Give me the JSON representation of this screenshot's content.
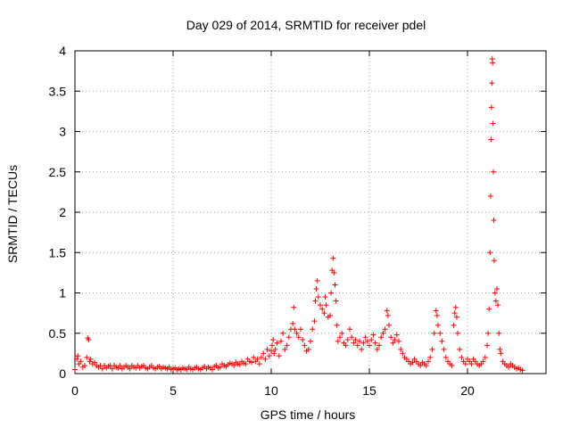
{
  "chart_data": {
    "type": "scatter",
    "title": "Day 029 of 2014, SRMTID for receiver pdel",
    "xlabel": "GPS time / hours",
    "ylabel": "SRMTID / TECUs",
    "xlim": [
      0,
      24
    ],
    "ylim": [
      0,
      4
    ],
    "grid": true,
    "marker": "+",
    "color": "#ff0000",
    "x_ticks": [
      0,
      5,
      10,
      15,
      20
    ],
    "x_tick_labels": [
      "0",
      "5",
      "10",
      "15",
      "20"
    ],
    "y_ticks": [
      0,
      0.5,
      1,
      1.5,
      2,
      2.5,
      3,
      3.5,
      4
    ],
    "y_tick_labels": [
      "0",
      "0.5",
      "1",
      "1.5",
      "2",
      "2.5",
      "3",
      "3.5",
      "4"
    ],
    "series": [
      {
        "name": "SRMTID",
        "points": [
          [
            0.0,
            0.05
          ],
          [
            0.1,
            0.18
          ],
          [
            0.15,
            0.22
          ],
          [
            0.2,
            0.12
          ],
          [
            0.3,
            0.15
          ],
          [
            0.4,
            0.08
          ],
          [
            0.5,
            0.1
          ],
          [
            0.6,
            0.2
          ],
          [
            0.65,
            0.44
          ],
          [
            0.7,
            0.42
          ],
          [
            0.75,
            0.15
          ],
          [
            0.8,
            0.18
          ],
          [
            0.9,
            0.12
          ],
          [
            1.0,
            0.14
          ],
          [
            1.1,
            0.1
          ],
          [
            1.2,
            0.08
          ],
          [
            1.3,
            0.1
          ],
          [
            1.4,
            0.06
          ],
          [
            1.5,
            0.1
          ],
          [
            1.6,
            0.07
          ],
          [
            1.7,
            0.09
          ],
          [
            1.8,
            0.1
          ],
          [
            1.9,
            0.06
          ],
          [
            2.0,
            0.1
          ],
          [
            2.1,
            0.08
          ],
          [
            2.2,
            0.07
          ],
          [
            2.3,
            0.1
          ],
          [
            2.4,
            0.06
          ],
          [
            2.5,
            0.08
          ],
          [
            2.6,
            0.1
          ],
          [
            2.7,
            0.08
          ],
          [
            2.8,
            0.06
          ],
          [
            2.9,
            0.1
          ],
          [
            3.0,
            0.08
          ],
          [
            3.1,
            0.07
          ],
          [
            3.2,
            0.1
          ],
          [
            3.3,
            0.07
          ],
          [
            3.4,
            0.09
          ],
          [
            3.5,
            0.1
          ],
          [
            3.6,
            0.07
          ],
          [
            3.7,
            0.06
          ],
          [
            3.8,
            0.08
          ],
          [
            3.9,
            0.1
          ],
          [
            4.0,
            0.07
          ],
          [
            4.1,
            0.06
          ],
          [
            4.2,
            0.08
          ],
          [
            4.3,
            0.09
          ],
          [
            4.4,
            0.06
          ],
          [
            4.5,
            0.08
          ],
          [
            4.6,
            0.07
          ],
          [
            4.7,
            0.06
          ],
          [
            4.8,
            0.08
          ],
          [
            4.9,
            0.05
          ],
          [
            5.0,
            0.06
          ],
          [
            5.1,
            0.07
          ],
          [
            5.2,
            0.05
          ],
          [
            5.3,
            0.06
          ],
          [
            5.4,
            0.05
          ],
          [
            5.5,
            0.07
          ],
          [
            5.6,
            0.06
          ],
          [
            5.7,
            0.05
          ],
          [
            5.8,
            0.08
          ],
          [
            5.9,
            0.06
          ],
          [
            6.0,
            0.05
          ],
          [
            6.1,
            0.07
          ],
          [
            6.2,
            0.08
          ],
          [
            6.3,
            0.06
          ],
          [
            6.4,
            0.05
          ],
          [
            6.5,
            0.07
          ],
          [
            6.6,
            0.09
          ],
          [
            6.7,
            0.06
          ],
          [
            6.8,
            0.08
          ],
          [
            6.9,
            0.07
          ],
          [
            7.0,
            0.05
          ],
          [
            7.1,
            0.09
          ],
          [
            7.2,
            0.1
          ],
          [
            7.3,
            0.07
          ],
          [
            7.4,
            0.08
          ],
          [
            7.5,
            0.12
          ],
          [
            7.6,
            0.1
          ],
          [
            7.7,
            0.09
          ],
          [
            7.8,
            0.11
          ],
          [
            7.9,
            0.13
          ],
          [
            8.0,
            0.12
          ],
          [
            8.1,
            0.1
          ],
          [
            8.2,
            0.14
          ],
          [
            8.3,
            0.12
          ],
          [
            8.4,
            0.11
          ],
          [
            8.5,
            0.15
          ],
          [
            8.6,
            0.13
          ],
          [
            8.7,
            0.12
          ],
          [
            8.8,
            0.18
          ],
          [
            8.9,
            0.15
          ],
          [
            9.0,
            0.14
          ],
          [
            9.1,
            0.2
          ],
          [
            9.2,
            0.15
          ],
          [
            9.3,
            0.18
          ],
          [
            9.4,
            0.12
          ],
          [
            9.5,
            0.2
          ],
          [
            9.6,
            0.25
          ],
          [
            9.7,
            0.18
          ],
          [
            9.8,
            0.3
          ],
          [
            9.9,
            0.22
          ],
          [
            10.0,
            0.28
          ],
          [
            10.05,
            0.35
          ],
          [
            10.1,
            0.42
          ],
          [
            10.15,
            0.25
          ],
          [
            10.2,
            0.3
          ],
          [
            10.3,
            0.38
          ],
          [
            10.4,
            0.22
          ],
          [
            10.5,
            0.4
          ],
          [
            10.6,
            0.5
          ],
          [
            10.7,
            0.3
          ],
          [
            10.8,
            0.35
          ],
          [
            10.9,
            0.45
          ],
          [
            11.0,
            0.55
          ],
          [
            11.1,
            0.62
          ],
          [
            11.15,
            0.82
          ],
          [
            11.2,
            0.55
          ],
          [
            11.3,
            0.5
          ],
          [
            11.4,
            0.45
          ],
          [
            11.5,
            0.55
          ],
          [
            11.6,
            0.42
          ],
          [
            11.7,
            0.35
          ],
          [
            11.8,
            0.28
          ],
          [
            11.9,
            0.3
          ],
          [
            12.0,
            0.4
          ],
          [
            12.1,
            0.55
          ],
          [
            12.2,
            0.65
          ],
          [
            12.25,
            0.9
          ],
          [
            12.3,
            1.05
          ],
          [
            12.35,
            1.15
          ],
          [
            12.4,
            0.95
          ],
          [
            12.5,
            0.85
          ],
          [
            12.6,
            0.8
          ],
          [
            12.7,
            0.75
          ],
          [
            12.75,
            0.95
          ],
          [
            12.8,
            0.85
          ],
          [
            12.9,
            0.7
          ],
          [
            13.0,
            0.72
          ],
          [
            13.05,
            1.0
          ],
          [
            13.1,
            1.28
          ],
          [
            13.15,
            1.43
          ],
          [
            13.2,
            1.25
          ],
          [
            13.25,
            1.1
          ],
          [
            13.3,
            0.9
          ],
          [
            13.35,
            0.6
          ],
          [
            13.4,
            0.4
          ],
          [
            13.5,
            0.45
          ],
          [
            13.6,
            0.5
          ],
          [
            13.7,
            0.38
          ],
          [
            13.8,
            0.35
          ],
          [
            13.9,
            0.42
          ],
          [
            14.0,
            0.55
          ],
          [
            14.1,
            0.45
          ],
          [
            14.2,
            0.38
          ],
          [
            14.3,
            0.42
          ],
          [
            14.4,
            0.35
          ],
          [
            14.5,
            0.4
          ],
          [
            14.6,
            0.3
          ],
          [
            14.7,
            0.38
          ],
          [
            14.8,
            0.45
          ],
          [
            14.9,
            0.4
          ],
          [
            15.0,
            0.35
          ],
          [
            15.1,
            0.42
          ],
          [
            15.2,
            0.48
          ],
          [
            15.3,
            0.38
          ],
          [
            15.4,
            0.3
          ],
          [
            15.5,
            0.35
          ],
          [
            15.6,
            0.45
          ],
          [
            15.7,
            0.5
          ],
          [
            15.8,
            0.55
          ],
          [
            15.9,
            0.78
          ],
          [
            15.95,
            0.72
          ],
          [
            16.0,
            0.6
          ],
          [
            16.1,
            0.45
          ],
          [
            16.2,
            0.38
          ],
          [
            16.3,
            0.42
          ],
          [
            16.4,
            0.48
          ],
          [
            16.5,
            0.4
          ],
          [
            16.6,
            0.3
          ],
          [
            16.7,
            0.25
          ],
          [
            16.8,
            0.2
          ],
          [
            16.9,
            0.18
          ],
          [
            17.0,
            0.15
          ],
          [
            17.1,
            0.12
          ],
          [
            17.2,
            0.14
          ],
          [
            17.3,
            0.18
          ],
          [
            17.4,
            0.15
          ],
          [
            17.5,
            0.12
          ],
          [
            17.6,
            0.1
          ],
          [
            17.7,
            0.14
          ],
          [
            17.8,
            0.12
          ],
          [
            17.9,
            0.1
          ],
          [
            18.0,
            0.15
          ],
          [
            18.1,
            0.2
          ],
          [
            18.2,
            0.3
          ],
          [
            18.3,
            0.5
          ],
          [
            18.4,
            0.78
          ],
          [
            18.45,
            0.72
          ],
          [
            18.5,
            0.6
          ],
          [
            18.6,
            0.5
          ],
          [
            18.7,
            0.4
          ],
          [
            18.8,
            0.3
          ],
          [
            18.9,
            0.2
          ],
          [
            19.0,
            0.15
          ],
          [
            19.1,
            0.12
          ],
          [
            19.2,
            0.1
          ],
          [
            19.3,
            0.6
          ],
          [
            19.35,
            0.75
          ],
          [
            19.4,
            0.82
          ],
          [
            19.45,
            0.7
          ],
          [
            19.5,
            0.5
          ],
          [
            19.6,
            0.3
          ],
          [
            19.7,
            0.2
          ],
          [
            19.8,
            0.15
          ],
          [
            19.9,
            0.12
          ],
          [
            20.0,
            0.18
          ],
          [
            20.1,
            0.15
          ],
          [
            20.2,
            0.12
          ],
          [
            20.3,
            0.18
          ],
          [
            20.4,
            0.15
          ],
          [
            20.5,
            0.12
          ],
          [
            20.6,
            0.1
          ],
          [
            20.7,
            0.12
          ],
          [
            20.8,
            0.15
          ],
          [
            20.9,
            0.2
          ],
          [
            21.0,
            0.35
          ],
          [
            21.05,
            0.5
          ],
          [
            21.1,
            0.8
          ],
          [
            21.15,
            1.5
          ],
          [
            21.18,
            2.2
          ],
          [
            21.2,
            2.9
          ],
          [
            21.22,
            3.3
          ],
          [
            21.24,
            3.6
          ],
          [
            21.26,
            3.9
          ],
          [
            21.28,
            3.85
          ],
          [
            21.3,
            3.1
          ],
          [
            21.32,
            2.5
          ],
          [
            21.34,
            1.9
          ],
          [
            21.36,
            1.4
          ],
          [
            21.4,
            1.0
          ],
          [
            21.45,
            0.9
          ],
          [
            21.5,
            1.05
          ],
          [
            21.55,
            0.85
          ],
          [
            21.6,
            0.5
          ],
          [
            21.65,
            0.3
          ],
          [
            21.7,
            0.25
          ],
          [
            21.8,
            0.15
          ],
          [
            21.9,
            0.12
          ],
          [
            22.0,
            0.1
          ],
          [
            22.1,
            0.08
          ],
          [
            22.2,
            0.12
          ],
          [
            22.3,
            0.1
          ],
          [
            22.4,
            0.08
          ],
          [
            22.5,
            0.06
          ],
          [
            22.6,
            0.07
          ],
          [
            22.7,
            0.05
          ],
          [
            22.8,
            0.04
          ]
        ]
      }
    ]
  }
}
